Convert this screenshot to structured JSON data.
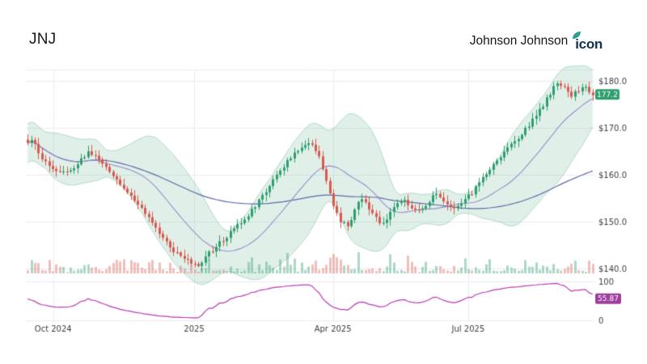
{
  "header": {
    "ticker": "JNJ",
    "company": "Johnson Johnson",
    "brand": "icon"
  },
  "chart_data": {
    "type": "candlestick",
    "symbol": "JNJ",
    "company": "Johnson Johnson",
    "candle_count": 160,
    "x_ticks": [
      {
        "label": "Oct 2024",
        "pos": 0.048
      },
      {
        "label": "2025",
        "pos": 0.296
      },
      {
        "label": "Apr 2025",
        "pos": 0.54
      },
      {
        "label": "Jul 2025",
        "pos": 0.778
      }
    ],
    "price_panel": {
      "ylim": [
        139,
        182.5
      ],
      "yticks": [
        {
          "value": 180,
          "label": "$180.0"
        },
        {
          "value": 170,
          "label": "$170.0"
        },
        {
          "value": 160,
          "label": "$160.0"
        },
        {
          "value": 150,
          "label": "$150.0"
        },
        {
          "value": 140,
          "label": "$140.0"
        }
      ],
      "last_price": 177.2,
      "last_price_label": "177.2",
      "indicators": {
        "bollinger_period": 20,
        "bollinger_k": 2.1,
        "sma_short": 20,
        "sma_long": 100
      },
      "close_anchors": [
        [
          0.0,
          166.5
        ],
        [
          0.008,
          168.2
        ],
        [
          0.02,
          164.5
        ],
        [
          0.035,
          162.2
        ],
        [
          0.05,
          161.0
        ],
        [
          0.065,
          160.2
        ],
        [
          0.08,
          161.6
        ],
        [
          0.095,
          163.2
        ],
        [
          0.107,
          164.8
        ],
        [
          0.118,
          163.8
        ],
        [
          0.132,
          162.4
        ],
        [
          0.146,
          160.4
        ],
        [
          0.16,
          158.4
        ],
        [
          0.175,
          156.5
        ],
        [
          0.19,
          154.8
        ],
        [
          0.202,
          152.8
        ],
        [
          0.215,
          150.6
        ],
        [
          0.23,
          148.2
        ],
        [
          0.245,
          145.8
        ],
        [
          0.26,
          143.6
        ],
        [
          0.275,
          142.2
        ],
        [
          0.29,
          141.2
        ],
        [
          0.302,
          140.9
        ],
        [
          0.316,
          142.6
        ],
        [
          0.33,
          144.4
        ],
        [
          0.345,
          146.2
        ],
        [
          0.36,
          147.9
        ],
        [
          0.375,
          149.6
        ],
        [
          0.39,
          151.6
        ],
        [
          0.405,
          153.8
        ],
        [
          0.42,
          156.2
        ],
        [
          0.435,
          159.0
        ],
        [
          0.45,
          161.6
        ],
        [
          0.465,
          163.6
        ],
        [
          0.478,
          165.2
        ],
        [
          0.49,
          166.3
        ],
        [
          0.503,
          166.9
        ],
        [
          0.515,
          164.2
        ],
        [
          0.527,
          158.8
        ],
        [
          0.54,
          153.6
        ],
        [
          0.553,
          150.2
        ],
        [
          0.565,
          148.9
        ],
        [
          0.578,
          152.2
        ],
        [
          0.59,
          155.2
        ],
        [
          0.602,
          153.2
        ],
        [
          0.615,
          150.8
        ],
        [
          0.628,
          149.2
        ],
        [
          0.64,
          151.6
        ],
        [
          0.652,
          153.9
        ],
        [
          0.665,
          154.9
        ],
        [
          0.678,
          153.2
        ],
        [
          0.69,
          151.9
        ],
        [
          0.702,
          153.1
        ],
        [
          0.715,
          155.1
        ],
        [
          0.728,
          155.9
        ],
        [
          0.74,
          154.3
        ],
        [
          0.752,
          152.9
        ],
        [
          0.765,
          153.6
        ],
        [
          0.778,
          155.2
        ],
        [
          0.79,
          156.8
        ],
        [
          0.803,
          158.8
        ],
        [
          0.816,
          160.9
        ],
        [
          0.83,
          163.0
        ],
        [
          0.843,
          164.9
        ],
        [
          0.856,
          166.5
        ],
        [
          0.87,
          168.3
        ],
        [
          0.883,
          170.2
        ],
        [
          0.896,
          172.2
        ],
        [
          0.908,
          174.2
        ],
        [
          0.92,
          176.5
        ],
        [
          0.932,
          178.8
        ],
        [
          0.94,
          180.0
        ],
        [
          0.952,
          178.2
        ],
        [
          0.962,
          176.9
        ],
        [
          0.975,
          178.3
        ],
        [
          0.988,
          178.9
        ],
        [
          1.0,
          177.2
        ]
      ]
    },
    "rsi_panel": {
      "period": 14,
      "ylim": [
        0,
        100
      ],
      "yticks": [
        {
          "value": 100,
          "label": "100"
        },
        {
          "value": 0,
          "label": "0"
        }
      ],
      "last_value": 55.87,
      "last_label": "55.87"
    },
    "colors": {
      "up": "#2f9e6e",
      "down": "#d7594f",
      "band_fill": "rgba(63,160,120,0.16)",
      "band_stroke": "rgba(63,160,120,0.35)",
      "sma_short": "#9b8bca",
      "sma_long": "#5d6ba8",
      "rsi": "#b93ab0",
      "grid": "#ebebf1",
      "axis_text": "#3c3c46",
      "price_badge": "#2f9e6e",
      "rsi_badge": "#9b3d9b",
      "vol_up": "rgba(47,158,110,0.40)",
      "vol_down": "rgba(215,95,85,0.40)",
      "leaf": "#2e9e8f"
    }
  }
}
